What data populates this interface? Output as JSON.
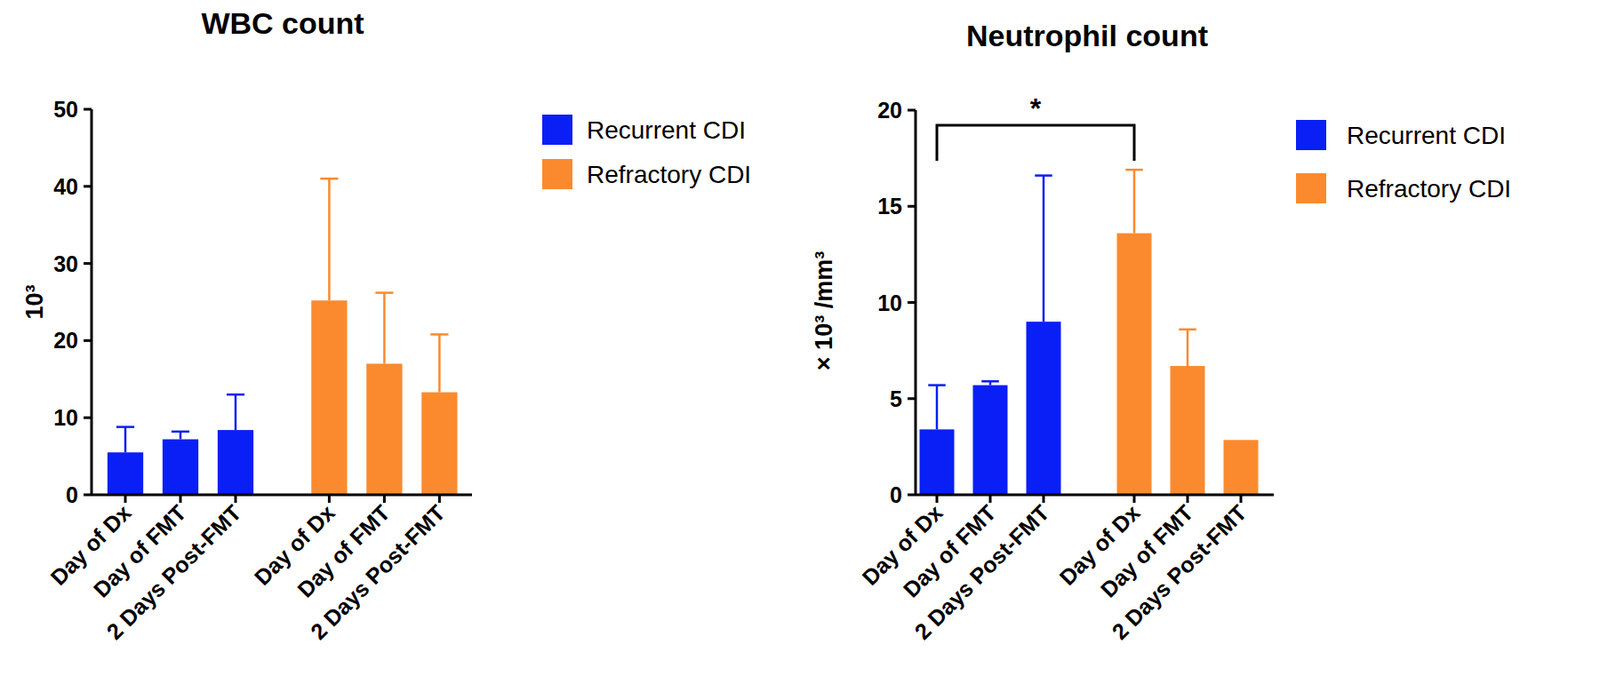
{
  "chart_data": [
    {
      "type": "bar",
      "title": "WBC count",
      "y_label": "10³",
      "categories": [
        "Day of Dx",
        "Day of FMT",
        "2 Days Post-FMT"
      ],
      "series": [
        {
          "name": "Recurrent CDI",
          "color": "#0a1ff5",
          "values": [
            5.5,
            7.2,
            8.4
          ],
          "errors": [
            3.3,
            1.0,
            4.6
          ]
        },
        {
          "name": "Refractory CDI",
          "color": "#fb8a2e",
          "values": [
            25.2,
            17.0,
            13.3
          ],
          "errors": [
            15.8,
            9.2,
            7.5
          ]
        }
      ],
      "ylim": [
        0,
        50
      ],
      "yticks": [
        0,
        10,
        20,
        30,
        40,
        50
      ],
      "legend": "right",
      "grid": false
    },
    {
      "type": "bar",
      "title": "Neutrophil count",
      "y_label": "× 10³ /mm³",
      "categories": [
        "Day of Dx",
        "Day of FMT",
        "2 Days Post-FMT"
      ],
      "series": [
        {
          "name": "Recurrent CDI",
          "color": "#0a1ff5",
          "values": [
            3.4,
            5.7,
            9.0
          ],
          "errors": [
            2.3,
            0.2,
            7.6
          ]
        },
        {
          "name": "Refractory CDI",
          "color": "#fb8a2e",
          "values": [
            13.6,
            6.7,
            2.85
          ],
          "errors": [
            3.3,
            1.9,
            null
          ]
        }
      ],
      "ylim": [
        0,
        20
      ],
      "yticks": [
        0,
        5,
        10,
        15,
        20
      ],
      "legend": "right",
      "grid": false,
      "annotations": [
        {
          "text": "*",
          "category": "Day of Dx",
          "between": [
            "Recurrent CDI",
            "Refractory CDI"
          ]
        }
      ]
    }
  ]
}
